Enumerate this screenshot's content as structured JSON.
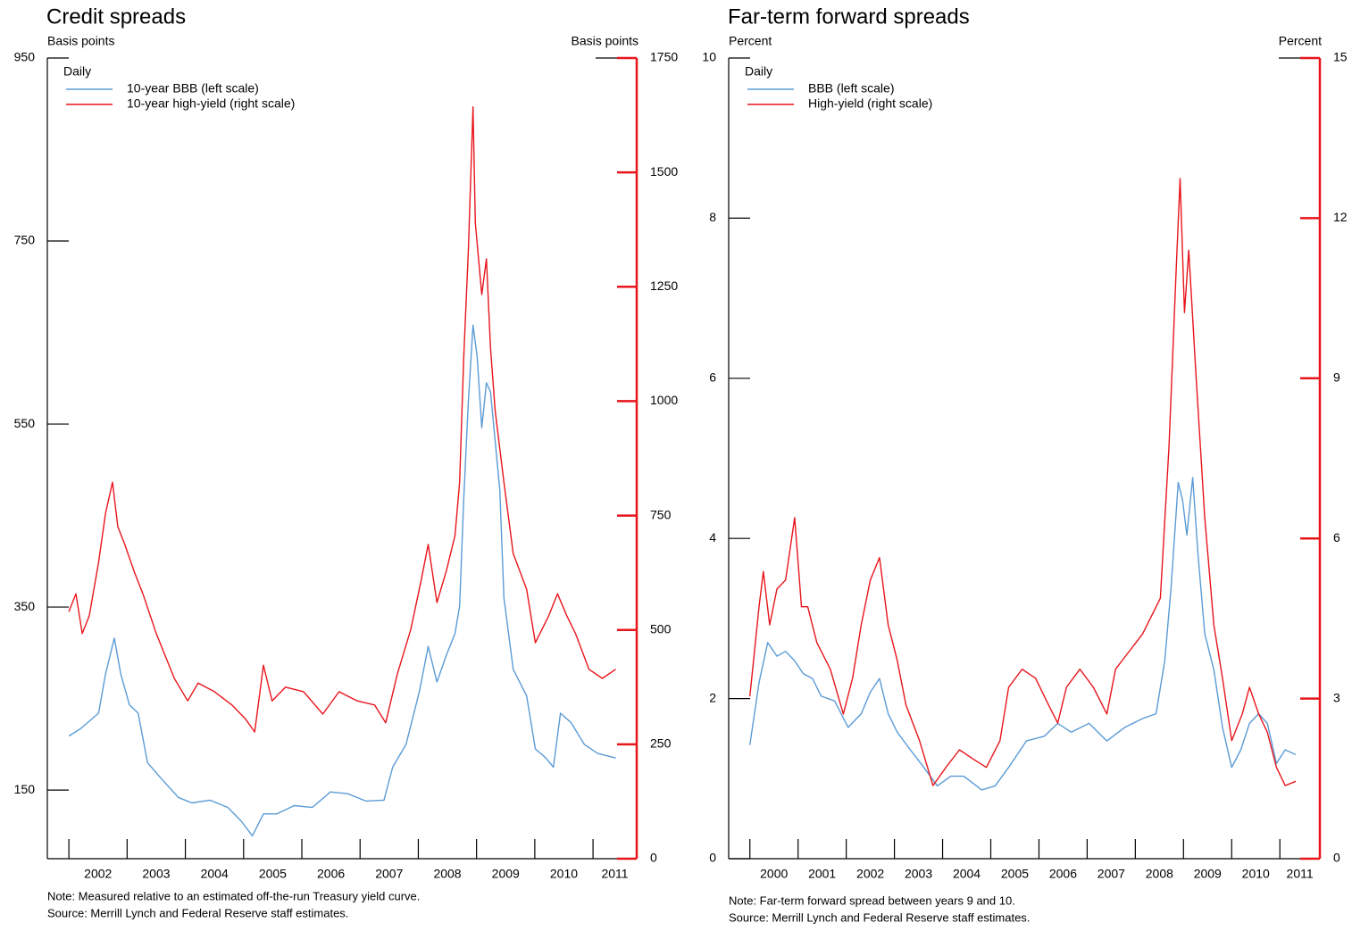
{
  "chart_data": [
    {
      "type": "line",
      "title": "Credit spreads",
      "y_label": "Basis points",
      "y2_label": "Basis points",
      "legend_title": "Daily",
      "notes": [
        "Note: Measured relative to an estimated off-the-run Treasury yield curve.",
        "Source: Merrill Lynch and Federal Reserve staff estimates."
      ],
      "xlim": [
        2001.63,
        2011.75
      ],
      "xticks": [
        2002,
        2003,
        2004,
        2005,
        2006,
        2007,
        2008,
        2009,
        2010,
        2011
      ],
      "ylim": [
        75,
        950
      ],
      "yticks": [
        150,
        350,
        550,
        750,
        950
      ],
      "y2lim": [
        0,
        1750
      ],
      "y2ticks": [
        0,
        250,
        500,
        750,
        1000,
        1250,
        1500,
        1750
      ],
      "series": [
        {
          "name": "10-year BBB (left scale)",
          "color": "#5b9bd5",
          "x": [
            2002.0,
            2002.2,
            2002.51,
            2002.63,
            2002.78,
            2002.89,
            2003.04,
            2003.19,
            2003.35,
            2003.58,
            2003.88,
            2004.11,
            2004.42,
            2004.73,
            2004.96,
            2005.15,
            2005.34,
            2005.57,
            2005.87,
            2006.18,
            2006.49,
            2006.79,
            2007.1,
            2007.41,
            2007.56,
            2007.79,
            2008.02,
            2008.17,
            2008.32,
            2008.48,
            2008.63,
            2008.71,
            2008.78,
            2008.86,
            2008.94,
            2009.01,
            2009.09,
            2009.17,
            2009.24,
            2009.4,
            2009.47,
            2009.63,
            2009.86,
            2010.01,
            2010.19,
            2010.32,
            2010.44,
            2010.62,
            2010.85,
            2011.08,
            2011.39
          ],
          "values": [
            209,
            217,
            234,
            277,
            316,
            277,
            243,
            234,
            180,
            163,
            142,
            136,
            139,
            131,
            116,
            100,
            124,
            124,
            133,
            131,
            148,
            146,
            138,
            139,
            175,
            200,
            258,
            307,
            268,
            297,
            321,
            351,
            468,
            575,
            658,
            624,
            546,
            595,
            585,
            478,
            360,
            282,
            253,
            195,
            185,
            175,
            234,
            224,
            200,
            190,
            185
          ]
        },
        {
          "name": "10-year high-yield (right scale)",
          "color": "#e8151b",
          "axis": "y2",
          "x": [
            2002.0,
            2002.12,
            2002.23,
            2002.35,
            2002.51,
            2002.63,
            2002.75,
            2002.84,
            2002.96,
            2003.12,
            2003.27,
            2003.5,
            2003.81,
            2004.04,
            2004.22,
            2004.5,
            2004.8,
            2005.03,
            2005.19,
            2005.34,
            2005.49,
            2005.72,
            2006.03,
            2006.36,
            2006.64,
            2006.95,
            2007.25,
            2007.44,
            2007.64,
            2007.87,
            2008.05,
            2008.17,
            2008.32,
            2008.48,
            2008.63,
            2008.71,
            2008.78,
            2008.86,
            2008.94,
            2008.98,
            2009.09,
            2009.17,
            2009.24,
            2009.32,
            2009.47,
            2009.63,
            2009.86,
            2010.01,
            2010.24,
            2010.39,
            2010.55,
            2010.7,
            2010.93,
            2011.16,
            2011.39
          ],
          "values": [
            540,
            579,
            492,
            531,
            648,
            755,
            823,
            726,
            687,
            628,
            579,
            492,
            394,
            345,
            384,
            365,
            336,
            306,
            277,
            423,
            345,
            375,
            365,
            316,
            365,
            345,
            336,
            297,
            404,
            501,
            609,
            687,
            560,
            628,
            706,
            823,
            1096,
            1331,
            1643,
            1389,
            1233,
            1311,
            1116,
            979,
            823,
            667,
            589,
            472,
            531,
            579,
            531,
            492,
            414,
            394,
            414
          ]
        }
      ]
    },
    {
      "type": "line",
      "title": "Far-term forward spreads",
      "y_label": "Percent",
      "y2_label": "Percent",
      "legend_title": "Daily",
      "notes": [
        "Note: Far-term forward spread between years 9 and 10.",
        "Source: Merrill Lynch and Federal Reserve staff estimates."
      ],
      "xlim": [
        1999.56,
        2011.83
      ],
      "xticks": [
        2000,
        2001,
        2002,
        2003,
        2004,
        2005,
        2006,
        2007,
        2008,
        2009,
        2010,
        2011
      ],
      "ylim": [
        0,
        10
      ],
      "yticks": [
        0,
        2,
        4,
        6,
        8,
        10
      ],
      "y2lim": [
        0,
        15
      ],
      "y2ticks": [
        0,
        3,
        6,
        9,
        12,
        15
      ],
      "series": [
        {
          "name": "BBB (left scale)",
          "color": "#5b9bd5",
          "x": [
            2000.0,
            2000.19,
            2000.37,
            2000.56,
            2000.74,
            2000.93,
            2001.11,
            2001.3,
            2001.48,
            2001.76,
            2002.04,
            2002.31,
            2002.5,
            2002.69,
            2002.87,
            2003.06,
            2003.33,
            2003.61,
            2003.89,
            2004.17,
            2004.44,
            2004.81,
            2005.09,
            2005.37,
            2005.74,
            2006.11,
            2006.39,
            2006.67,
            2007.04,
            2007.41,
            2007.78,
            2008.15,
            2008.43,
            2008.61,
            2008.74,
            2008.89,
            2008.98,
            2009.07,
            2009.19,
            2009.3,
            2009.44,
            2009.63,
            2009.81,
            2010.0,
            2010.19,
            2010.37,
            2010.56,
            2010.74,
            2010.93,
            2011.11,
            2011.33
          ],
          "values": [
            1.42,
            2.2,
            2.7,
            2.53,
            2.59,
            2.47,
            2.31,
            2.25,
            2.03,
            1.97,
            1.64,
            1.81,
            2.08,
            2.25,
            1.81,
            1.58,
            1.36,
            1.14,
            0.91,
            1.03,
            1.03,
            0.86,
            0.91,
            1.14,
            1.47,
            1.53,
            1.69,
            1.58,
            1.69,
            1.47,
            1.64,
            1.75,
            1.81,
            2.47,
            3.37,
            4.7,
            4.48,
            4.04,
            4.76,
            3.81,
            2.81,
            2.36,
            1.64,
            1.14,
            1.36,
            1.69,
            1.81,
            1.69,
            1.19,
            1.36,
            1.3
          ]
        },
        {
          "name": "High-yield (right scale)",
          "color": "#e8151b",
          "axis": "y2",
          "x": [
            2000.0,
            2000.19,
            2000.28,
            2000.41,
            2000.56,
            2000.74,
            2000.93,
            2001.07,
            2001.2,
            2001.39,
            2001.67,
            2001.94,
            2002.13,
            2002.31,
            2002.5,
            2002.69,
            2002.87,
            2003.06,
            2003.24,
            2003.52,
            2003.8,
            2004.07,
            2004.35,
            2004.63,
            2004.91,
            2005.19,
            2005.37,
            2005.65,
            2005.93,
            2006.2,
            2006.39,
            2006.57,
            2006.85,
            2007.13,
            2007.41,
            2007.59,
            2007.87,
            2008.15,
            2008.52,
            2008.7,
            2008.85,
            2008.93,
            2009.02,
            2009.11,
            2009.26,
            2009.44,
            2009.63,
            2009.81,
            2010.0,
            2010.22,
            2010.37,
            2010.56,
            2010.74,
            2010.93,
            2011.11,
            2011.33
          ],
          "values": [
            3.04,
            4.72,
            5.38,
            4.38,
            5.05,
            5.22,
            6.39,
            4.72,
            4.72,
            4.05,
            3.55,
            2.71,
            3.38,
            4.38,
            5.22,
            5.64,
            4.38,
            3.71,
            2.88,
            2.21,
            1.37,
            1.71,
            2.04,
            1.87,
            1.71,
            2.21,
            3.21,
            3.55,
            3.38,
            2.88,
            2.54,
            3.21,
            3.55,
            3.21,
            2.71,
            3.55,
            3.88,
            4.21,
            4.88,
            7.73,
            11.07,
            12.74,
            10.23,
            11.4,
            9.06,
            6.39,
            4.38,
            3.38,
            2.21,
            2.71,
            3.21,
            2.71,
            2.37,
            1.71,
            1.37,
            1.45
          ]
        }
      ]
    }
  ]
}
